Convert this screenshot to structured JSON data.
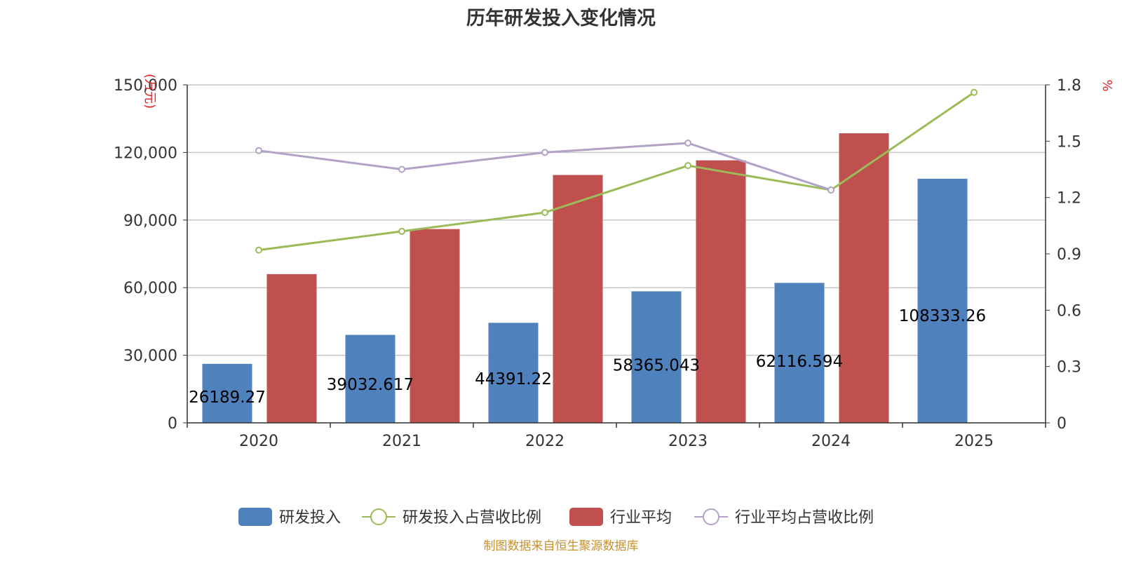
{
  "chart_data": {
    "type": "bar",
    "title": "历年研发投入变化情况",
    "categories": [
      "2020",
      "2021",
      "2022",
      "2023",
      "2024",
      "2025"
    ],
    "y_left": {
      "unit": "(万元)",
      "ylim": [
        0,
        150000
      ],
      "ticks": [
        "0",
        "30,000",
        "60,000",
        "90,000",
        "120,000",
        "150,000"
      ]
    },
    "y_right": {
      "unit": "%",
      "ylim": [
        0,
        1.8
      ],
      "ticks": [
        "0",
        "0.3",
        "0.6",
        "0.9",
        "1.2",
        "1.5",
        "1.8"
      ]
    },
    "grid": true,
    "legend_position": "bottom",
    "series": [
      {
        "name": "研发投入",
        "kind": "bar",
        "axis": "left",
        "color": "#4f81bd",
        "values": [
          26189.27,
          39032.617,
          44391.22,
          58365.043,
          62116.594,
          108333.26
        ],
        "labels": [
          "26189.27",
          "39032.617",
          "44391.22",
          "58365.043",
          "62116.594",
          "108333.26"
        ]
      },
      {
        "name": "研发投入占营收比例",
        "kind": "line",
        "axis": "right",
        "color": "#9bbb59",
        "values": [
          0.92,
          1.02,
          1.12,
          1.37,
          1.24,
          1.76
        ]
      },
      {
        "name": "行业平均",
        "kind": "bar",
        "axis": "left",
        "color": "#c0504d",
        "values": [
          66000,
          86000,
          110000,
          116500,
          128500,
          null
        ]
      },
      {
        "name": "行业平均占营收比例",
        "kind": "line",
        "axis": "right",
        "color": "#b3a2c7",
        "values": [
          1.45,
          1.35,
          1.44,
          1.49,
          1.24,
          null
        ]
      }
    ]
  },
  "footer": {
    "source": "制图数据来自恒生聚源数据库"
  }
}
